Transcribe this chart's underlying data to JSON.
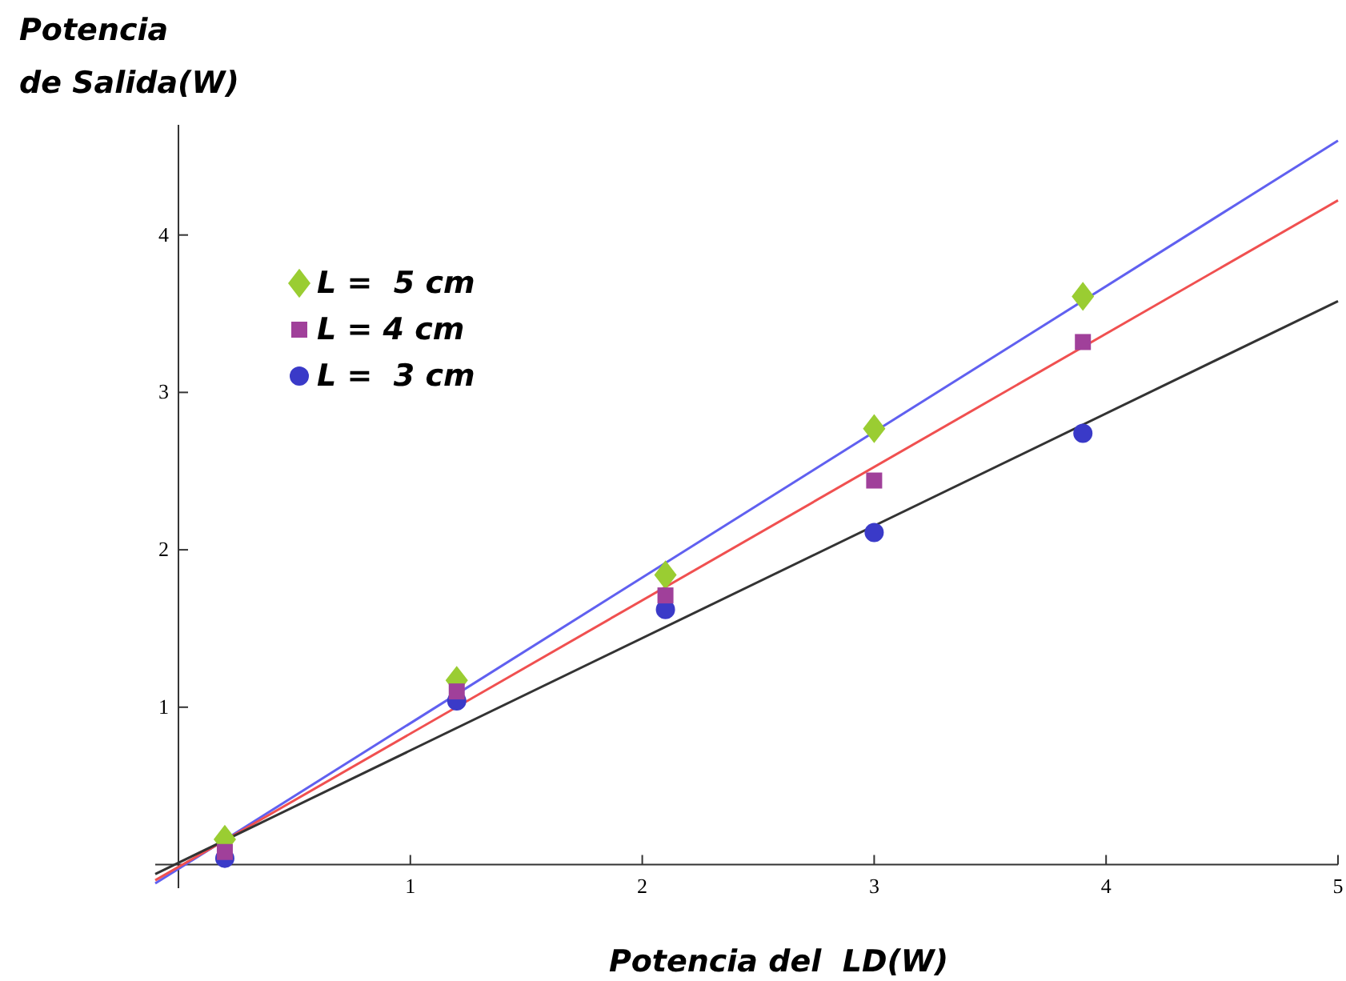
{
  "chart_data": {
    "type": "scatter",
    "xlabel": "Potencia del  LD(W)",
    "ylabel": "Potencia\nde Salida(W)",
    "xlim": [
      -0.1,
      5
    ],
    "ylim": [
      -0.15,
      4.7
    ],
    "xticks": [
      1,
      2,
      3,
      4,
      5
    ],
    "yticks": [
      1,
      2,
      3,
      4
    ],
    "grid": false,
    "legend": "top left",
    "series": [
      {
        "name": "L =  5 cm",
        "color": "#9acd32",
        "marker": "diamond",
        "x": [
          0.2,
          1.2,
          2.1,
          3.0,
          3.9
        ],
        "values": [
          0.16,
          1.17,
          1.84,
          2.77,
          3.61
        ]
      },
      {
        "name": "L = 4 cm",
        "color": "#a0409a",
        "marker": "square",
        "x": [
          0.2,
          1.2,
          2.1,
          3.0,
          3.9
        ],
        "values": [
          0.08,
          1.1,
          1.71,
          2.44,
          3.32
        ]
      },
      {
        "name": "L =  3 cm",
        "color": "#3a3ac8",
        "marker": "circle",
        "x": [
          0.2,
          1.2,
          2.1,
          3.0,
          3.9
        ],
        "values": [
          0.04,
          1.04,
          1.62,
          2.11,
          2.74
        ]
      },
      {
        "type": "line",
        "color": "#6060f0",
        "x": [
          -0.1,
          5
        ],
        "values": [
          -0.12,
          4.6
        ]
      },
      {
        "type": "line",
        "color": "#f05050",
        "x": [
          -0.1,
          5
        ],
        "values": [
          -0.1,
          4.22
        ]
      },
      {
        "type": "line",
        "color": "#333333",
        "x": [
          -0.1,
          5
        ],
        "values": [
          -0.06,
          3.58
        ]
      }
    ]
  }
}
